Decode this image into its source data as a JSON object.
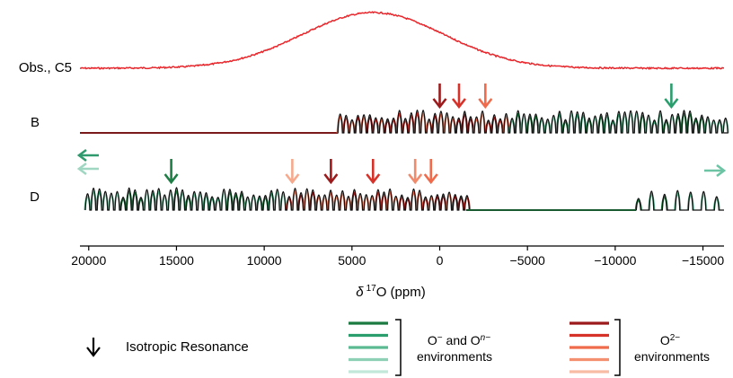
{
  "chart_data": {
    "type": "line",
    "xlabel_prefix": "δ",
    "xlabel_sup": "17",
    "xlabel_rest": "O (ppm)",
    "xlim": [
      20500,
      -16200
    ],
    "ticks": [
      20000,
      15000,
      10000,
      5000,
      0,
      -5000,
      -10000,
      -15000
    ],
    "tick_labels": [
      "20000",
      "15000",
      "10000",
      "5000",
      "0",
      "−5000",
      "−10000",
      "−15000"
    ],
    "traces": [
      {
        "label": "Obs., C5",
        "kind": "observed",
        "color": "#e8262b",
        "center_ppm": 3800,
        "fwhm_ppm": 9500,
        "x_range": [
          20500,
          -16200
        ]
      },
      {
        "label": "B",
        "kind": "simulated",
        "x_range": [
          5800,
          -16200
        ]
      },
      {
        "label": "D",
        "kind": "simulated",
        "x_range": [
          20500,
          -16200
        ],
        "gap_ppm": [
          -1500,
          -11200
        ]
      }
    ],
    "isotropic_arrows": [
      {
        "trace": "B",
        "shift_ppm": 0,
        "color": "#9c1a1c"
      },
      {
        "trace": "B",
        "shift_ppm": -1100,
        "color": "#d6322a"
      },
      {
        "trace": "B",
        "shift_ppm": -2600,
        "color": "#ef6b4b"
      },
      {
        "trace": "B",
        "shift_ppm": -13200,
        "color": "#2a9e6d"
      },
      {
        "trace": "D",
        "shift_ppm": 15300,
        "color": "#1e7e46"
      },
      {
        "trace": "D",
        "shift_ppm": 8400,
        "color": "#f6a98c"
      },
      {
        "trace": "D",
        "shift_ppm": 6200,
        "color": "#9c1a1c"
      },
      {
        "trace": "D",
        "shift_ppm": 3800,
        "color": "#d6322a"
      },
      {
        "trace": "D",
        "shift_ppm": 1400,
        "color": "#f08a6a"
      },
      {
        "trace": "D",
        "shift_ppm": 500,
        "color": "#ef6b4b"
      }
    ],
    "offscale_arrows": [
      {
        "trace": "D",
        "direction": "left",
        "color": "#2f9a6e"
      },
      {
        "trace": "D",
        "direction": "left",
        "color": "#9fd7c2"
      },
      {
        "trace": "D",
        "direction": "right",
        "color": "#6cc4a4"
      }
    ],
    "legend": {
      "arrow_label": "Isotropic Resonance",
      "group1_line1": "O",
      "group1_sup1": "−",
      "group1_mid": " and O",
      "group1_sup2": "n−",
      "group1_line2": "environments",
      "group1_colors": [
        "#1a7a40",
        "#2a9e6d",
        "#5cba93",
        "#8dd0b5",
        "#c2e8da"
      ],
      "group2_label_main": "O",
      "group2_label_sup": "2−",
      "group2_line2": "environments",
      "group2_colors": [
        "#9c1a1c",
        "#d6322a",
        "#ef6b4b",
        "#f48f6f",
        "#f8bba3"
      ]
    },
    "grid": false
  }
}
